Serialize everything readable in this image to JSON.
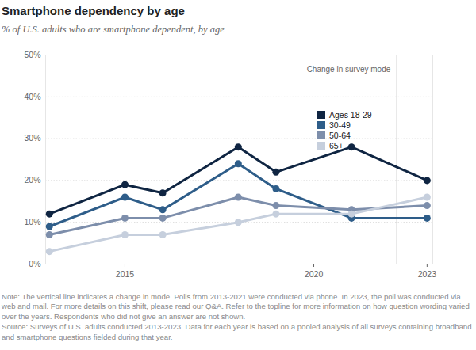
{
  "chart_data": {
    "type": "line",
    "title": "Smartphone dependency by age",
    "subtitle": "% of U.S. adults who are smartphone dependent, by age",
    "x": [
      2013,
      2015,
      2016,
      2018,
      2019,
      2021,
      2023
    ],
    "series": [
      {
        "name": "Ages 18-29",
        "color": "#0f2542",
        "values": [
          12,
          19,
          17,
          28,
          22,
          28,
          20
        ]
      },
      {
        "name": "30-49",
        "color": "#2e5d89",
        "values": [
          9,
          16,
          13,
          24,
          18,
          11,
          11
        ]
      },
      {
        "name": "50-64",
        "color": "#7d8eab",
        "values": [
          7,
          11,
          11,
          16,
          14,
          13,
          14
        ]
      },
      {
        "name": "65+",
        "color": "#c6cfdd",
        "values": [
          3,
          7,
          7,
          10,
          12,
          12,
          16
        ]
      }
    ],
    "marker": "circle",
    "xlim": [
      2012.9,
      2023.15
    ],
    "xticks": [
      2015,
      2020,
      2023
    ],
    "ylim": [
      0,
      50
    ],
    "yticks": [
      {
        "value": 0,
        "label": "0%"
      },
      {
        "value": 10,
        "label": "10%"
      },
      {
        "value": 20,
        "label": "20%"
      },
      {
        "value": 30,
        "label": "30%"
      },
      {
        "value": 40,
        "label": "40%"
      },
      {
        "value": 50,
        "label": "50%"
      }
    ],
    "grid": true,
    "legend": "top-right",
    "annotations": [
      {
        "type": "rule",
        "x": 2022.2,
        "text": "Change in survey mode"
      }
    ],
    "note": "Note: The vertical line indicates a change in mode. Polls from 2013-2021 were conducted via phone. In 2023, the poll was conducted via web and mail. For more details on this shift, please read our Q&A. Refer to the topline for more information on how question wording varied over the years. Respondents who did not give an answer are not shown.",
    "source": "Source: Surveys of U.S. adults conducted 2013-2023. Data for each year is based on a pooled analysis of all surveys containing broadband and smartphone questions fielded during that year."
  }
}
